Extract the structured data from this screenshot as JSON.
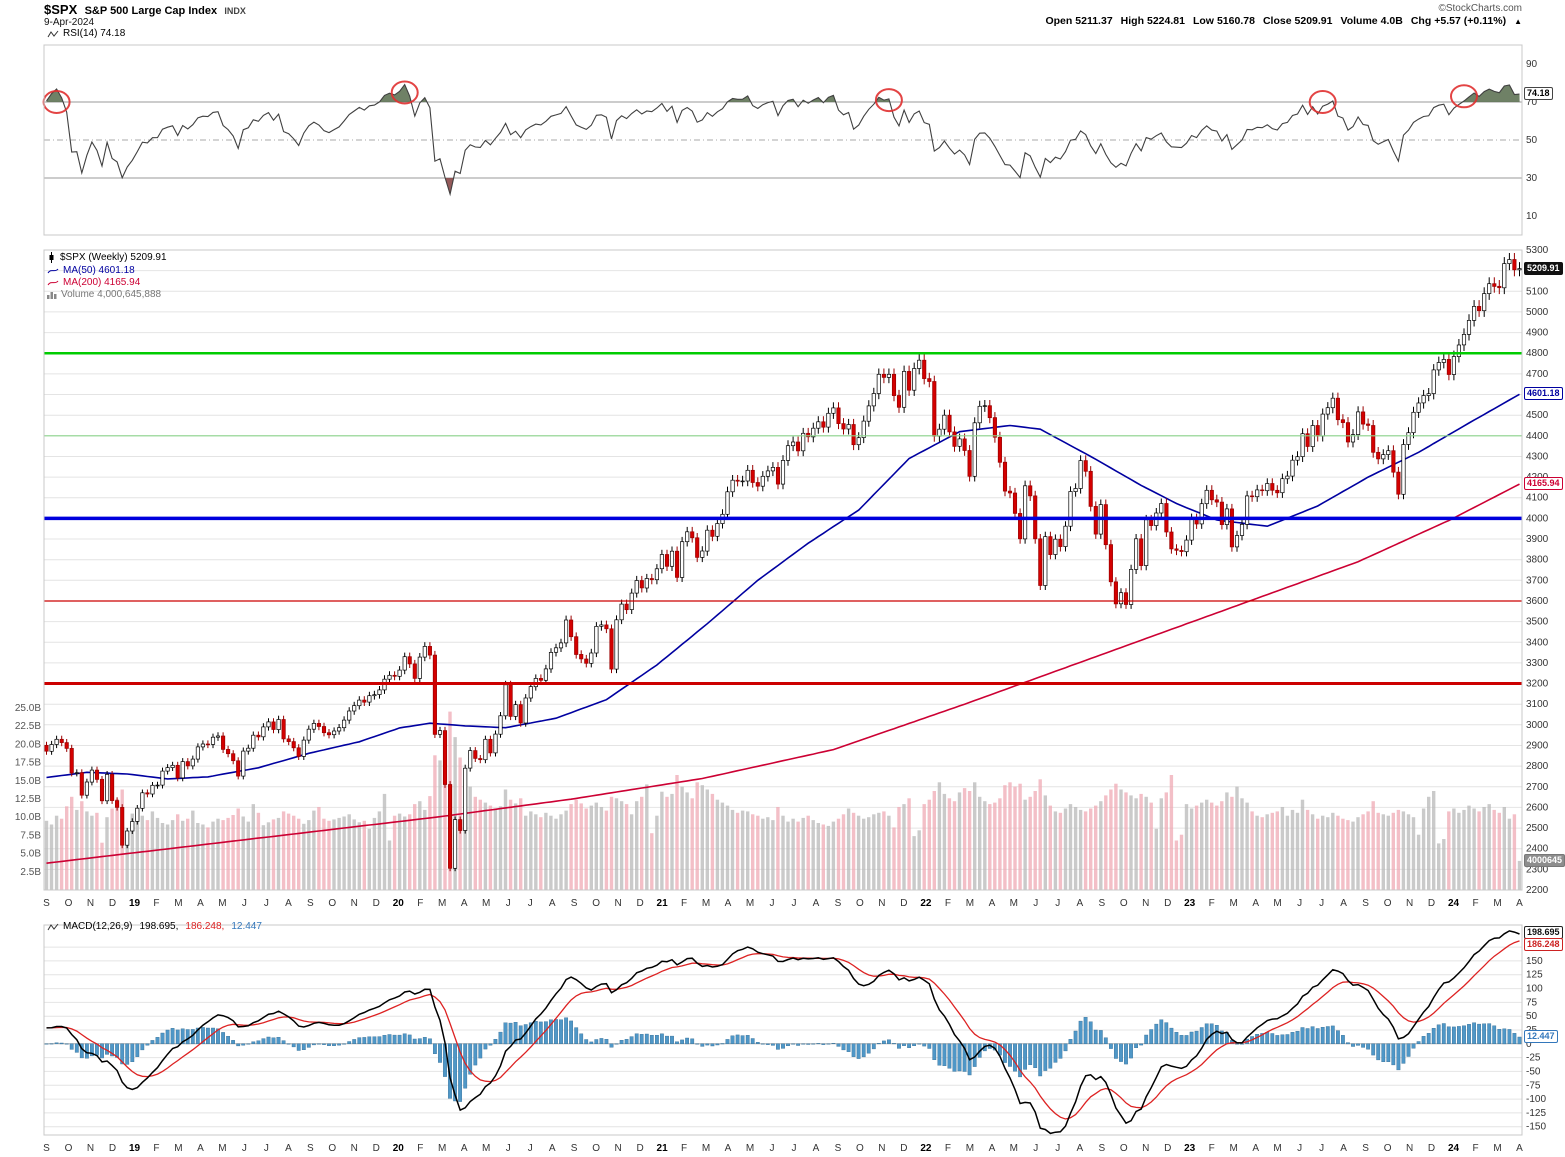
{
  "header": {
    "symbol": "$SPX",
    "name": "S&P 500 Large Cap Index",
    "exchange": "INDX",
    "credit": "©StockCharts.com",
    "date": "9-Apr-2024",
    "change_arrow": "▲",
    "quote": [
      {
        "label": "Open",
        "value": "5211.37"
      },
      {
        "label": "High",
        "value": "5224.81"
      },
      {
        "label": "Low",
        "value": "5160.78"
      },
      {
        "label": "Close",
        "value": "5209.91"
      },
      {
        "label": "Volume",
        "value": "4.0B"
      },
      {
        "label": "Chg",
        "value": "+5.57 (+0.11%)"
      }
    ]
  },
  "legends": {
    "rsi": "RSI(14) 74.18",
    "spx": "$SPX (Weekly) 5209.91",
    "ma50": "MA(50) 4601.18",
    "ma200": "MA(200) 4165.94",
    "volume": "Volume 4,000,645,888",
    "macd_name": "MACD(12,26,9)",
    "macd_line": "198.695,",
    "macd_signal": "186.248,",
    "macd_hist": "12.447"
  },
  "tags": {
    "rsi": "74.18",
    "close": "5209.91",
    "ma50": "4601.18",
    "ma200": "4165.94",
    "volume": "4000645",
    "macd": "198.695",
    "signal": "186.248",
    "hist": "12.447"
  },
  "chart_data": {
    "type": "candlestick",
    "symbol": "$SPX",
    "timeframe": "Weekly",
    "range": "Sep 2018 - Apr 2024",
    "rsi_period": 14,
    "macd_params": [
      12,
      26,
      9
    ],
    "price_axis": {
      "min": 2200,
      "max": 5300,
      "step": 100
    },
    "volume_axis": {
      "min": 2.5,
      "max": 25,
      "step": 2.5,
      "unit": "B"
    },
    "rsi_axis": {
      "ticks": [
        90,
        70,
        50,
        30,
        10
      ],
      "overbought": 70,
      "oversold": 30,
      "midline": 50
    },
    "macd_axis": {
      "min": -150,
      "max": 175,
      "step": 25
    },
    "hlines": [
      {
        "value": 4800,
        "color": "#00cc00",
        "width": 2.5
      },
      {
        "value": 4400,
        "color": "#8ed68e",
        "width": 1.2
      },
      {
        "value": 4000,
        "color": "#0000dd",
        "width": 3.5
      },
      {
        "value": 3600,
        "color": "#cc0000",
        "width": 1.2
      },
      {
        "value": 3200,
        "color": "#cc0000",
        "width": 3
      }
    ],
    "x_labels": [
      "S",
      "O",
      "N",
      "D",
      "19",
      "F",
      "M",
      "A",
      "M",
      "J",
      "J",
      "A",
      "S",
      "O",
      "N",
      "D",
      "20",
      "F",
      "M",
      "A",
      "M",
      "J",
      "J",
      "A",
      "S",
      "O",
      "N",
      "D",
      "21",
      "F",
      "M",
      "A",
      "M",
      "J",
      "J",
      "A",
      "S",
      "O",
      "N",
      "D",
      "22",
      "F",
      "M",
      "A",
      "M",
      "J",
      "J",
      "A",
      "S",
      "O",
      "N",
      "D",
      "23",
      "F",
      "M",
      "A",
      "M",
      "J",
      "J",
      "A",
      "S",
      "O",
      "N",
      "D",
      "24",
      "F",
      "M",
      "A"
    ],
    "close": [
      2872,
      2905,
      2930,
      2914,
      2886,
      2767,
      2768,
      2659,
      2723,
      2781,
      2736,
      2632,
      2760,
      2633,
      2600,
      2417,
      2486,
      2532,
      2596,
      2671,
      2665,
      2707,
      2708,
      2776,
      2793,
      2804,
      2743,
      2822,
      2801,
      2834,
      2893,
      2907,
      2905,
      2940,
      2946,
      2881,
      2860,
      2826,
      2752,
      2873,
      2887,
      2950,
      2942,
      2990,
      3014,
      2977,
      3026,
      2932,
      2919,
      2889,
      2847,
      2926,
      2979,
      3007,
      2992,
      2962,
      2952,
      2970,
      2986,
      3023,
      3067,
      3093,
      3120,
      3110,
      3141,
      3146,
      3169,
      3221,
      3240,
      3235,
      3265,
      3330,
      3295,
      3225,
      3328,
      3380,
      3338,
      2954,
      2972,
      2711,
      2305,
      2541,
      2488,
      2790,
      2875,
      2837,
      2831,
      2930,
      2864,
      2955,
      3044,
      3194,
      3041,
      3098,
      3009,
      3130,
      3185,
      3225,
      3216,
      3271,
      3351,
      3373,
      3397,
      3508,
      3427,
      3341,
      3319,
      3298,
      3348,
      3477,
      3484,
      3465,
      3270,
      3509,
      3585,
      3558,
      3638,
      3699,
      3663,
      3709,
      3703,
      3756,
      3825,
      3768,
      3841,
      3714,
      3887,
      3935,
      3906,
      3811,
      3842,
      3943,
      3913,
      3975,
      4020,
      4129,
      4185,
      4180,
      4181,
      4233,
      4174,
      4156,
      4204,
      4230,
      4247,
      4166,
      4281,
      4352,
      4370,
      4327,
      4412,
      4395,
      4437,
      4468,
      4442,
      4509,
      4535,
      4459,
      4433,
      4455,
      4357,
      4391,
      4471,
      4545,
      4605,
      4698,
      4683,
      4698,
      4595,
      4538,
      4712,
      4621,
      4726,
      4766,
      4677,
      4663,
      4398,
      4432,
      4500,
      4419,
      4349,
      4385,
      4329,
      4204,
      4463,
      4543,
      4546,
      4488,
      4393,
      4272,
      4132,
      4123,
      4024,
      3901,
      4158,
      4109,
      3901,
      3675,
      3912,
      3825,
      3899,
      3863,
      3962,
      4130,
      4145,
      4280,
      4228,
      4058,
      3924,
      4067,
      3873,
      3693,
      3586,
      3640,
      3583,
      3753,
      3901,
      3771,
      3993,
      3965,
      4026,
      4072,
      3934,
      3852,
      3845,
      3839,
      3895,
      3999,
      3973,
      4071,
      4136,
      4090,
      4079,
      3970,
      4046,
      3862,
      3917,
      3971,
      4109,
      4105,
      4138,
      4134,
      4169,
      4136,
      4124,
      4192,
      4205,
      4282,
      4299,
      4410,
      4348,
      4450,
      4399,
      4505,
      4536,
      4582,
      4478,
      4464,
      4370,
      4406,
      4516,
      4457,
      4450,
      4320,
      4288,
      4309,
      4328,
      4224,
      4117,
      4358,
      4415,
      4514,
      4559,
      4595,
      4604,
      4719,
      4755,
      4770,
      4697,
      4784,
      4840,
      4891,
      4959,
      5027,
      5006,
      5089,
      5137,
      5124,
      5117,
      5234,
      5254,
      5204,
      5210
    ],
    "volume_billions": [
      9.5,
      9.0,
      10.2,
      9.8,
      11.5,
      12.8,
      11.0,
      12.2,
      10.8,
      10.2,
      10.6,
      6.5,
      10.0,
      11.2,
      12.5,
      13.8,
      7.2,
      10.5,
      9.8,
      10.2,
      9.6,
      10.8,
      9.9,
      9.2,
      9.0,
      9.6,
      10.4,
      9.5,
      9.8,
      10.9,
      9.2,
      9.0,
      8.6,
      9.4,
      9.8,
      9.6,
      9.9,
      10.3,
      11.2,
      10.1,
      9.4,
      11.8,
      10.6,
      8.9,
      9.3,
      9.7,
      9.9,
      10.8,
      10.5,
      10.2,
      9.8,
      9.1,
      9.6,
      10.9,
      11.4,
      9.8,
      9.5,
      9.7,
      9.9,
      10.1,
      10.4,
      9.7,
      9.3,
      9.5,
      8.4,
      9.9,
      10.8,
      13.2,
      6.8,
      10.2,
      10.5,
      10.1,
      10.4,
      11.8,
      12.2,
      11.0,
      12.9,
      18.5,
      17.8,
      19.5,
      24.5,
      21.0,
      18.2,
      15.5,
      14.2,
      12.8,
      12.4,
      12.0,
      11.6,
      11.2,
      11.5,
      13.8,
      12.4,
      11.9,
      12.6,
      10.2,
      10.8,
      10.4,
      10.0,
      10.6,
      10.2,
      9.8,
      10.4,
      10.9,
      11.8,
      12.4,
      11.9,
      11.2,
      11.6,
      12.0,
      11.4,
      10.9,
      12.8,
      12.6,
      12.2,
      11.8,
      10.4,
      12.2,
      12.8,
      14.5,
      7.8,
      10.2,
      13.5,
      12.8,
      13.2,
      15.8,
      14.2,
      13.4,
      12.6,
      14.8,
      14.4,
      13.8,
      13.2,
      12.4,
      12.0,
      11.6,
      11.0,
      10.6,
      10.9,
      10.8,
      10.4,
      10.2,
      9.8,
      10.0,
      9.6,
      11.4,
      10.2,
      9.4,
      9.8,
      9.4,
      9.9,
      10.2,
      9.6,
      9.2,
      9.0,
      8.8,
      9.4,
      9.8,
      10.4,
      11.2,
      10.6,
      10.2,
      9.8,
      10.0,
      10.4,
      10.6,
      10.8,
      10.2,
      8.6,
      11.4,
      11.8,
      12.6,
      7.4,
      8.2,
      11.8,
      12.4,
      13.6,
      14.8,
      13.2,
      12.6,
      12.2,
      13.4,
      14.0,
      13.6,
      14.8,
      12.8,
      12.2,
      11.8,
      12.0,
      12.6,
      14.4,
      14.8,
      14.2,
      14.6,
      12.4,
      12.8,
      13.6,
      15.2,
      13.0,
      11.6,
      10.8,
      10.6,
      11.2,
      11.8,
      11.4,
      11.0,
      10.8,
      11.2,
      11.6,
      12.2,
      13.0,
      13.8,
      14.6,
      13.8,
      13.4,
      13.0,
      12.6,
      13.2,
      12.8,
      12.0,
      8.4,
      12.6,
      13.4,
      15.8,
      6.8,
      7.6,
      11.8,
      11.2,
      11.6,
      12.0,
      12.4,
      12.0,
      11.6,
      12.2,
      13.4,
      12.8,
      14.2,
      12.6,
      12.0,
      10.8,
      10.2,
      10.0,
      10.4,
      10.6,
      10.8,
      11.4,
      10.2,
      11.0,
      10.6,
      12.4,
      11.0,
      10.4,
      9.8,
      10.2,
      10.0,
      10.6,
      10.2,
      9.8,
      9.6,
      9.4,
      10.0,
      10.4,
      10.8,
      12.2,
      10.6,
      10.4,
      10.2,
      10.6,
      11.0,
      10.8,
      10.4,
      10.0,
      7.6,
      11.2,
      12.8,
      13.6,
      6.4,
      7.0,
      10.8,
      11.2,
      10.6,
      11.0,
      11.6,
      11.2,
      10.8,
      11.4,
      11.8,
      11.0,
      10.6,
      11.4,
      9.8,
      10.4,
      4.0
    ],
    "ma50": {
      "idx": [
        0,
        8,
        16,
        24,
        32,
        42,
        52,
        62,
        70,
        76,
        83,
        91,
        101,
        111,
        121,
        131,
        141,
        151,
        161,
        171,
        181,
        191,
        197,
        207,
        217,
        224,
        232,
        242,
        252,
        262,
        272,
        282,
        292
      ],
      "val": [
        2745,
        2770,
        2762,
        2738,
        2748,
        2792,
        2862,
        2918,
        2985,
        3008,
        2995,
        2986,
        3032,
        3122,
        3290,
        3490,
        3700,
        3880,
        4040,
        4290,
        4420,
        4450,
        4432,
        4300,
        4160,
        4072,
        3992,
        3962,
        4060,
        4200,
        4320,
        4462,
        4601
      ]
    },
    "ma200": {
      "idx": [
        0,
        26,
        52,
        78,
        104,
        130,
        156,
        182,
        208,
        234,
        260,
        278,
        292
      ],
      "val": [
        2330,
        2405,
        2480,
        2555,
        2640,
        2740,
        2880,
        3100,
        3330,
        3560,
        3790,
        3990,
        4166
      ]
    },
    "annotations": {
      "rsi_circles": [
        {
          "week": 2,
          "rsi": 70
        },
        {
          "week": 71,
          "rsi": 75
        },
        {
          "week": 167,
          "rsi": 71
        },
        {
          "week": 253,
          "rsi": 70
        },
        {
          "week": 281,
          "rsi": 73
        }
      ]
    },
    "colors": {
      "candle_up_fill": "#ffffff",
      "candle_up_stroke": "#000000",
      "candle_down_fill": "#d40000",
      "candle_down_stroke": "#990000",
      "ma50": "#0000a0",
      "ma200": "#cc0033",
      "vol_up": "#b8b8b8",
      "vol_down": "#efaab4",
      "rsi_line": "#404040",
      "rsi_fill_high": "#5f7355",
      "rsi_fill_low": "#8a4848",
      "macd_line": "#000000",
      "macd_signal": "#dd2222",
      "macd_hist": "#4f97c7",
      "macd_hist_stroke": "#366f96",
      "grid": "#e4e4e4",
      "panel_border": "#c8c8c8",
      "circle": "#e03030"
    }
  }
}
